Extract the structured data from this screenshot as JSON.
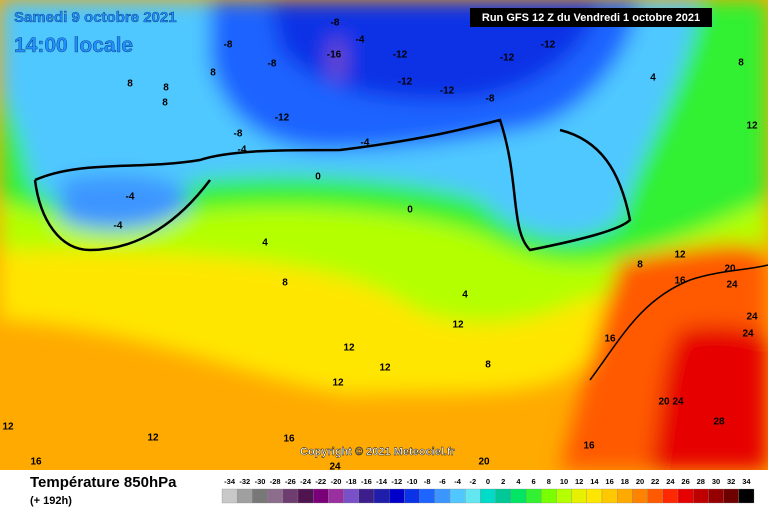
{
  "header": {
    "date": "Samedi 9 octobre 2021",
    "time": "14:00 locale",
    "run": "Run GFS 12 Z du Vendredi 1 octobre 2021"
  },
  "footer": {
    "title": "Température 850hPa",
    "lead": "(+ 192h)",
    "copyright": "Copyright © 2021 Meteociel.fr"
  },
  "scale": {
    "values": [
      -34,
      -32,
      -30,
      -28,
      -26,
      -24,
      -22,
      -20,
      -18,
      -16,
      -14,
      -12,
      -10,
      -8,
      -6,
      -4,
      -2,
      0,
      2,
      4,
      6,
      8,
      10,
      12,
      14,
      16,
      18,
      20,
      22,
      24,
      26,
      28,
      30,
      32,
      34
    ],
    "colors": [
      "#c8c8c8",
      "#a0a0a0",
      "#787878",
      "#8c6e8c",
      "#6e3c6e",
      "#501450",
      "#7a007a",
      "#9a30a0",
      "#7850c8",
      "#3c1e8c",
      "#1e1eaa",
      "#0000c8",
      "#0a32e6",
      "#1e64ff",
      "#3c96ff",
      "#50c8ff",
      "#64e6f0",
      "#00dcc8",
      "#00c896",
      "#00e664",
      "#32f032",
      "#78ff00",
      "#b4ff00",
      "#e6f000",
      "#ffe600",
      "#ffc800",
      "#ffaa00",
      "#ff8200",
      "#ff5a00",
      "#ff2800",
      "#e60000",
      "#be0000",
      "#960000",
      "#6e0000",
      "#000000"
    ]
  },
  "map_labels": [
    -12,
    -12,
    -12,
    -12,
    -12,
    -8,
    -8,
    -8,
    -8,
    -16,
    -4,
    4,
    8,
    12,
    -4,
    -8,
    -12,
    -4,
    0,
    -4,
    -4,
    0,
    4,
    8,
    4,
    12,
    8,
    12,
    16,
    20,
    24,
    24,
    24,
    16,
    12,
    12,
    12,
    8,
    16,
    12,
    16,
    16,
    12,
    20,
    24,
    28,
    20,
    24,
    8,
    8,
    8,
    8
  ]
}
